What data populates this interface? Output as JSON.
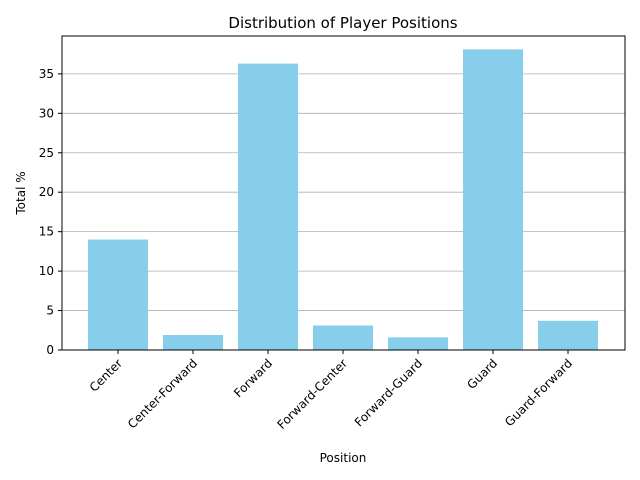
{
  "chart_data": {
    "type": "bar",
    "title": "Distribution of Player Positions",
    "xlabel": "Position",
    "ylabel": "Total %",
    "categories": [
      "Center",
      "Center-Forward",
      "Forward",
      "Forward-Center",
      "Forward-Guard",
      "Guard",
      "Guard-Forward"
    ],
    "values": [
      14.0,
      1.9,
      36.3,
      3.1,
      1.6,
      38.1,
      3.7
    ],
    "ylim": [
      0,
      40
    ],
    "yticks": [
      0,
      5,
      10,
      15,
      20,
      25,
      30,
      35
    ],
    "grid": "y",
    "bar_color": "#87CEEB",
    "legend": "none"
  }
}
